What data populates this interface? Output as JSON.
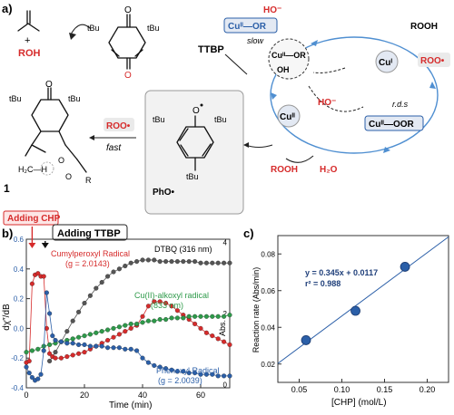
{
  "panel_a": {
    "label": "a)",
    "top": {
      "plus": "+",
      "roh": "ROH"
    },
    "tbu": "tBu",
    "ttbp": "TTBP",
    "phenoxyl": "PhO•",
    "roo_left": "ROO•",
    "fast": "fast",
    "slow": "slow",
    "compound_1": "1",
    "radical_sites": {
      "quinone_pair": 2,
      "dot_counts": {
        "phenoxyl": 1
      }
    },
    "ch3": "H₂C—H",
    "or_text": "O",
    "r_text": "R",
    "h_atom": "H",
    "cu_or": "Cuᴵᴵ—OR",
    "ho_top": "HO⁻",
    "cu_center": "Cuᴵᴵ—OR",
    "oh": "OH",
    "ho_mid": "HO⁻",
    "cu1": "Cuᴵ",
    "rooh_top": "ROOH",
    "roo_right": "ROO•",
    "rds": "r.d.s",
    "cu2": "Cuᴵᴵ",
    "cu_oor": "Cuᴵᴵ—OOR",
    "rooh_bottom": "ROOH",
    "h2o": "H₂O",
    "colors": {
      "red": "#d62b2b",
      "blue_box": "#2b5fa8",
      "box_fill": "#e3e9f3"
    }
  },
  "panel_b": {
    "label": "b)",
    "adding_chp": "Adding CHP",
    "adding_ttbp": "Adding TTBP",
    "xlabel": "Time (min)",
    "ylabel_left": "dχ″/dB",
    "ylabel_right": "Abs.",
    "annotations": {
      "dtbq": "DTBQ (316 nm)",
      "cumyl": "Cumylperoxyl Radical",
      "cumyl_g": "(g = 2.0143)",
      "alkoxyl": "Cu(II)-alkoxyl radical",
      "alkoxyl_nm": "(833 nm)",
      "phenoxy": "Phenoxyl Radical",
      "phenoxy_g": "(g = 2.0039)"
    }
  },
  "panel_c": {
    "label": "c)",
    "equation": "y = 0.345x + 0.0117",
    "r2": "r² = 0.988",
    "xlabel": "[CHP] (mol/L)",
    "ylabel": "Reaction rate (Abs/min)"
  },
  "chart_data": [
    {
      "type": "scatter",
      "xlabel": "Time (min)",
      "ylabel": "dχ″/dB",
      "xlim": [
        0,
        70
      ],
      "ylim": [
        -0.4,
        0.6
      ],
      "xticks": [
        "0",
        "20",
        "40",
        "60"
      ],
      "yticks": [
        "-0.4",
        "-0.2",
        "0.0",
        "0.2",
        "0.4",
        "0.6"
      ],
      "y2label": "Abs.",
      "y2ticks": [
        "0",
        "2",
        "4"
      ],
      "grid": false,
      "markers": {
        "adding_chp_t": 2,
        "adding_ttbp_t": 6.5
      },
      "series": [
        {
          "color": "#555555",
          "axis": "right",
          "x": [
            8,
            10,
            12,
            14,
            16,
            18,
            20,
            22,
            24,
            26,
            28,
            30,
            32,
            34,
            36,
            38,
            40,
            42,
            44,
            46,
            48,
            50,
            52,
            54,
            56,
            58,
            60,
            62,
            64,
            66,
            68,
            70
          ],
          "y": [
            -0.22,
            -0.16,
            -0.09,
            -0.02,
            0.05,
            0.11,
            0.17,
            0.22,
            0.27,
            0.31,
            0.35,
            0.38,
            0.4,
            0.42,
            0.44,
            0.45,
            0.46,
            0.46,
            0.46,
            0.45,
            0.45,
            0.45,
            0.45,
            0.45,
            0.45,
            0.45,
            0.44,
            0.44,
            0.44,
            0.44,
            0.44,
            0.44
          ]
        },
        {
          "color": "#d62b2b",
          "axis": "left",
          "x": [
            0,
            1,
            2,
            3,
            4,
            5,
            6,
            7,
            8,
            9,
            10,
            12,
            14,
            16,
            18,
            20,
            22,
            24,
            26,
            28,
            30,
            32,
            34,
            36,
            38,
            40,
            42,
            44,
            46,
            48,
            50,
            52,
            54,
            56,
            58,
            60,
            62,
            64,
            66,
            68,
            70
          ],
          "y": [
            -0.23,
            -0.22,
            0.3,
            0.36,
            0.37,
            0.35,
            0.35,
            0.0,
            -0.17,
            -0.19,
            -0.2,
            -0.2,
            -0.19,
            -0.18,
            -0.17,
            -0.16,
            -0.14,
            -0.12,
            -0.1,
            -0.08,
            -0.06,
            -0.04,
            -0.02,
            0.0,
            0.02,
            0.08,
            0.15,
            0.18,
            0.18,
            0.17,
            0.15,
            0.12,
            0.09,
            0.06,
            0.03,
            0.0,
            -0.03,
            -0.05,
            -0.07,
            -0.09,
            -0.11
          ]
        },
        {
          "color": "#2e9a4a",
          "axis": "right",
          "x": [
            0,
            2,
            4,
            6,
            8,
            10,
            12,
            14,
            16,
            18,
            20,
            22,
            24,
            26,
            28,
            30,
            32,
            34,
            36,
            38,
            40,
            42,
            44,
            46,
            48,
            50,
            52,
            54,
            56,
            58,
            60,
            62,
            64,
            66,
            68,
            70
          ],
          "y": [
            -0.16,
            -0.15,
            -0.14,
            -0.12,
            -0.11,
            -0.1,
            -0.09,
            -0.08,
            -0.07,
            -0.06,
            -0.05,
            -0.04,
            -0.03,
            -0.02,
            -0.01,
            0.0,
            0.01,
            0.02,
            0.03,
            0.03,
            0.04,
            0.05,
            0.05,
            0.06,
            0.06,
            0.07,
            0.07,
            0.07,
            0.08,
            0.08,
            0.08,
            0.08,
            0.08,
            0.08,
            0.08,
            0.09
          ]
        },
        {
          "color": "#2b5fa8",
          "axis": "left",
          "x": [
            0,
            1,
            2,
            3,
            4,
            5,
            6,
            7,
            8,
            9,
            10,
            12,
            14,
            16,
            18,
            20,
            22,
            24,
            26,
            28,
            30,
            32,
            34,
            36,
            38,
            40,
            42,
            44,
            46,
            48,
            50,
            52,
            54,
            56,
            58,
            60,
            62,
            64,
            66,
            68,
            70
          ],
          "y": [
            -0.26,
            -0.3,
            -0.33,
            -0.35,
            -0.34,
            -0.31,
            -0.15,
            0.24,
            0.1,
            -0.05,
            -0.08,
            -0.09,
            -0.1,
            -0.1,
            -0.11,
            -0.11,
            -0.12,
            -0.12,
            -0.12,
            -0.13,
            -0.13,
            -0.13,
            -0.14,
            -0.14,
            -0.15,
            -0.2,
            -0.23,
            -0.25,
            -0.26,
            -0.27,
            -0.28,
            -0.29,
            -0.29,
            -0.3,
            -0.3,
            -0.31,
            -0.31,
            -0.31,
            -0.32,
            -0.32,
            -0.32
          ]
        }
      ]
    },
    {
      "type": "scatter",
      "xlabel": "[CHP] (mol/L)",
      "ylabel": "Reaction rate (Abs/min)",
      "xlim": [
        0.025,
        0.225
      ],
      "ylim": [
        0.01,
        0.09
      ],
      "xticks": [
        "0.05",
        "0.10",
        "0.15",
        "0.20"
      ],
      "yticks": [
        "0.02",
        "0.04",
        "0.06",
        "0.08"
      ],
      "grid": false,
      "x": [
        0.058,
        0.116,
        0.174
      ],
      "y": [
        0.033,
        0.049,
        0.073
      ],
      "fit": {
        "slope": 0.345,
        "intercept": 0.0117
      },
      "color": "#2b5fa8"
    }
  ]
}
